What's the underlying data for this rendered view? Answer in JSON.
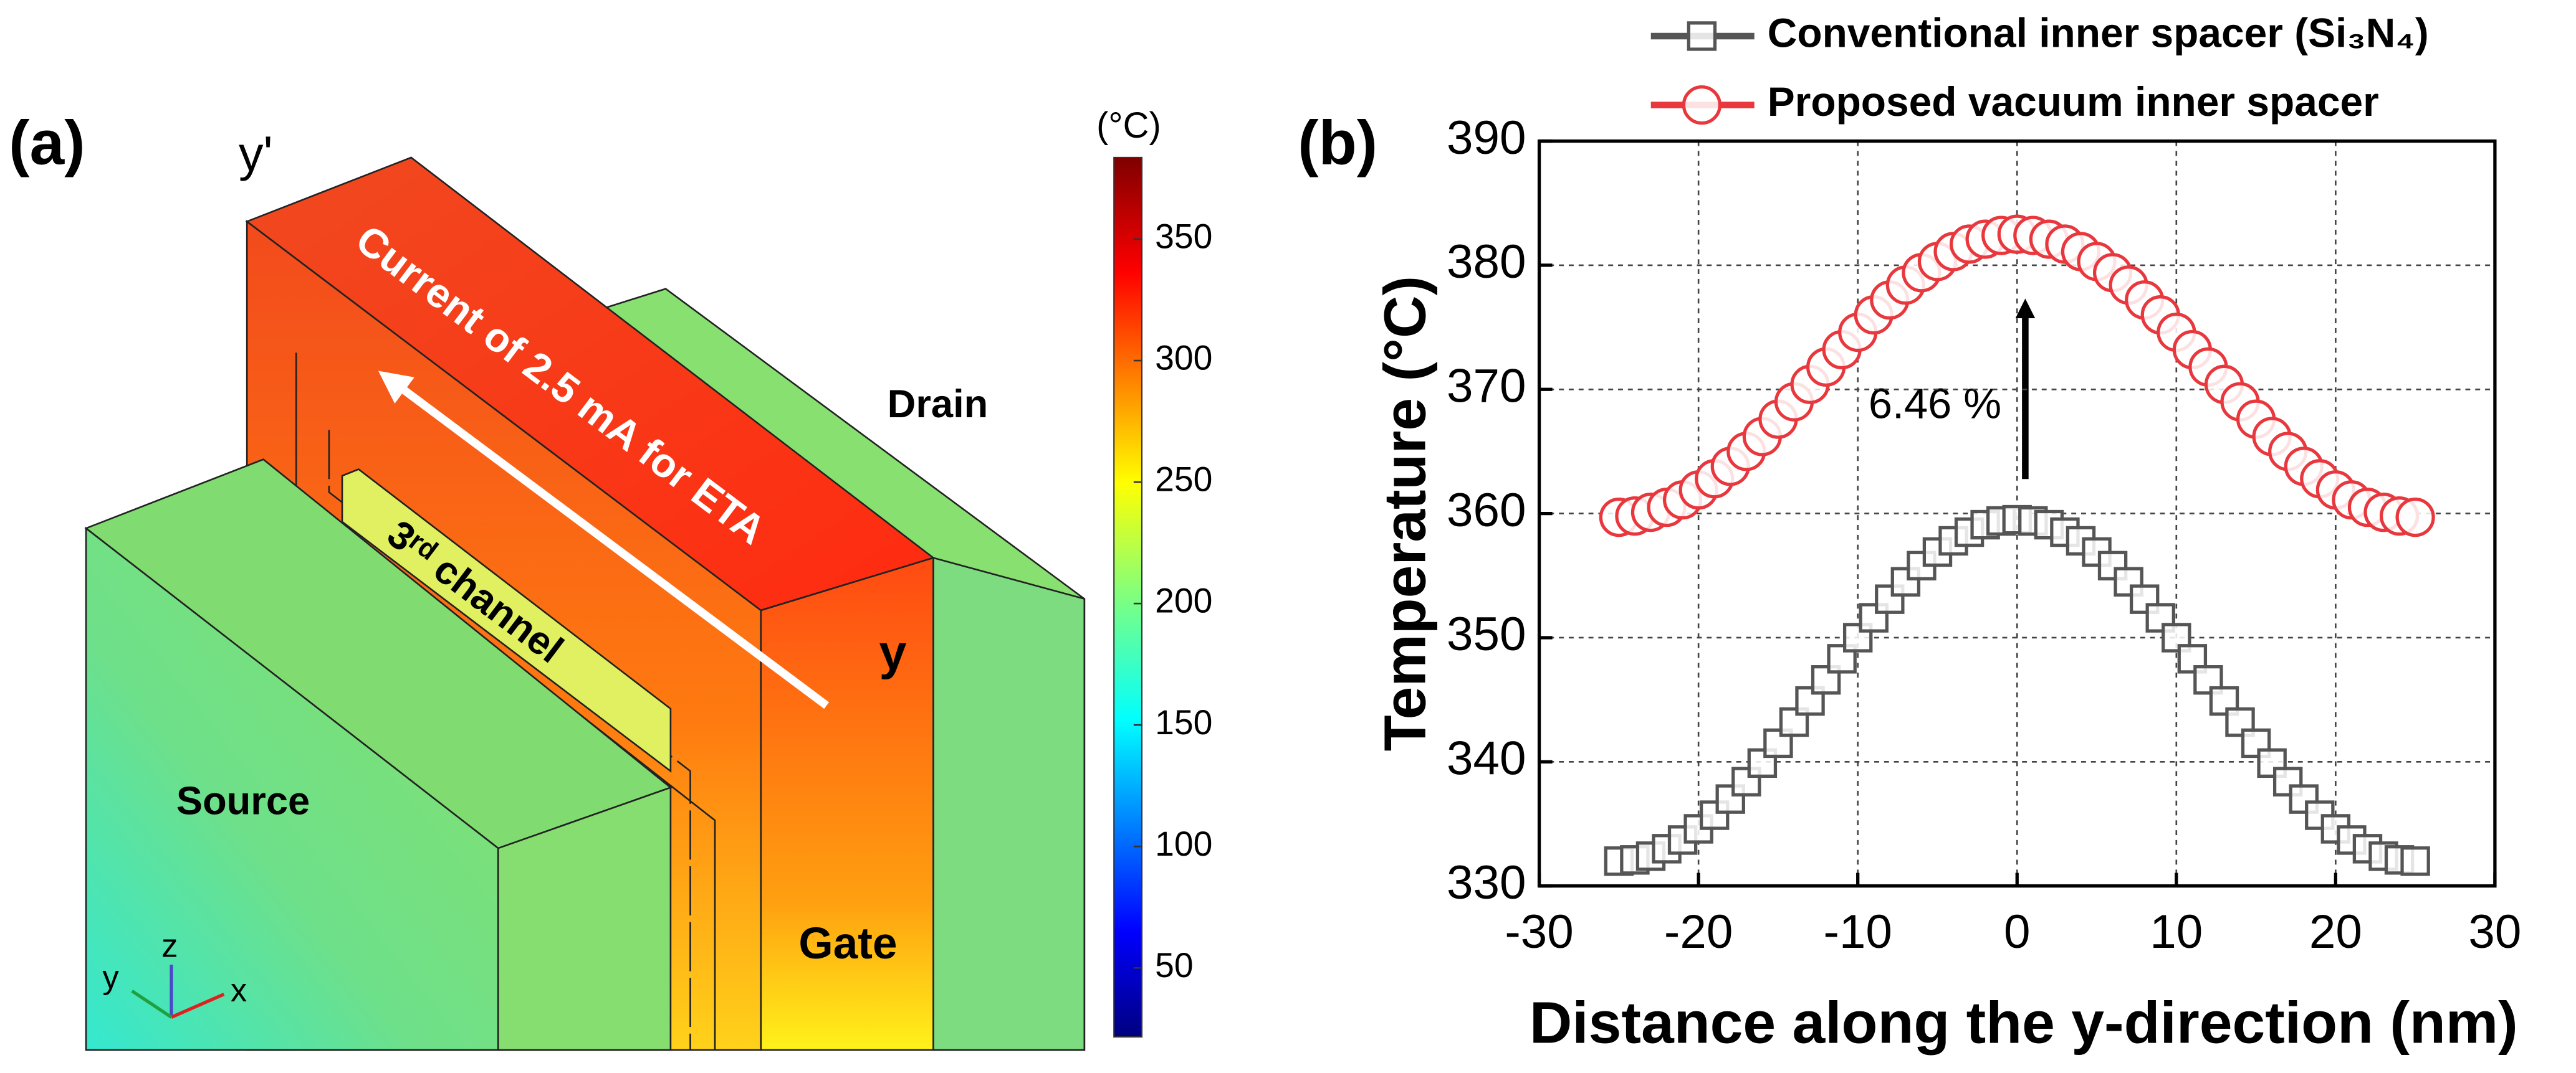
{
  "panel_a": {
    "label": "(a)",
    "y_prime": "y'",
    "y": "y",
    "current": "Current of 2.5 mA for ETA",
    "channel": "3ʳᵈ channel",
    "drain": "Drain",
    "source": "Source",
    "gate": "Gate",
    "axis_y": "y",
    "axis_z": "z",
    "axis_x": "x",
    "colorbar": {
      "unit": "(°C)",
      "clim": [
        21.6,
        383.6
      ],
      "ticks": [
        50,
        100,
        150,
        200,
        250,
        300,
        350
      ]
    }
  },
  "chart_data": {
    "type": "scatter",
    "panel_label": "(b)",
    "x_label": "Distance along the y-direction (nm)",
    "y_label": "Temperature (°C)",
    "xlim": [
      -30,
      30
    ],
    "xticks": [
      -30,
      -20,
      -10,
      0,
      10,
      20,
      30
    ],
    "ylim": [
      330,
      390
    ],
    "yticks": [
      330,
      340,
      350,
      360,
      370,
      380,
      390
    ],
    "grid": true,
    "annotation": "6.46 %",
    "x": [
      -25,
      -24,
      -23,
      -22,
      -21,
      -20,
      -19,
      -18,
      -17,
      -16,
      -15,
      -14,
      -13,
      -12,
      -11,
      -10,
      -9,
      -8,
      -7,
      -6,
      -5,
      -4,
      -3,
      -2,
      -1,
      0,
      1,
      2,
      3,
      4,
      5,
      6,
      7,
      8,
      9,
      10,
      11,
      12,
      13,
      14,
      15,
      16,
      17,
      18,
      19,
      20,
      21,
      22,
      23,
      24,
      25
    ],
    "series": [
      {
        "name": "Conventional inner spacer (Si₃N₄)",
        "color": "#555555",
        "marker": "square",
        "values": [
          332.0,
          332.1,
          332.4,
          333.0,
          333.7,
          334.6,
          335.7,
          337.0,
          338.4,
          339.9,
          341.5,
          343.2,
          344.9,
          346.6,
          348.3,
          350.0,
          351.6,
          353.1,
          354.5,
          355.8,
          356.9,
          357.8,
          358.5,
          359.1,
          359.4,
          359.5,
          359.4,
          359.1,
          358.5,
          357.8,
          356.9,
          355.8,
          354.5,
          353.1,
          351.6,
          350.0,
          348.3,
          346.6,
          344.9,
          343.2,
          341.5,
          339.9,
          338.4,
          337.0,
          335.7,
          334.6,
          333.7,
          333.0,
          332.4,
          332.1,
          332.0
        ]
      },
      {
        "name": "Proposed vacuum inner spacer",
        "color": "#e8383d",
        "marker": "circle",
        "values": [
          359.7,
          359.8,
          360.1,
          360.5,
          361.1,
          361.9,
          362.8,
          363.8,
          365.0,
          366.2,
          367.6,
          369.0,
          370.4,
          371.8,
          373.2,
          374.6,
          376.0,
          377.2,
          378.4,
          379.4,
          380.3,
          381.1,
          381.7,
          382.1,
          382.4,
          382.5,
          382.4,
          382.1,
          381.7,
          381.1,
          380.3,
          379.4,
          378.4,
          377.2,
          376.0,
          374.6,
          373.2,
          371.8,
          370.4,
          369.0,
          367.6,
          366.2,
          365.0,
          363.8,
          362.8,
          361.9,
          361.1,
          360.5,
          360.1,
          359.8,
          359.7
        ]
      }
    ]
  }
}
